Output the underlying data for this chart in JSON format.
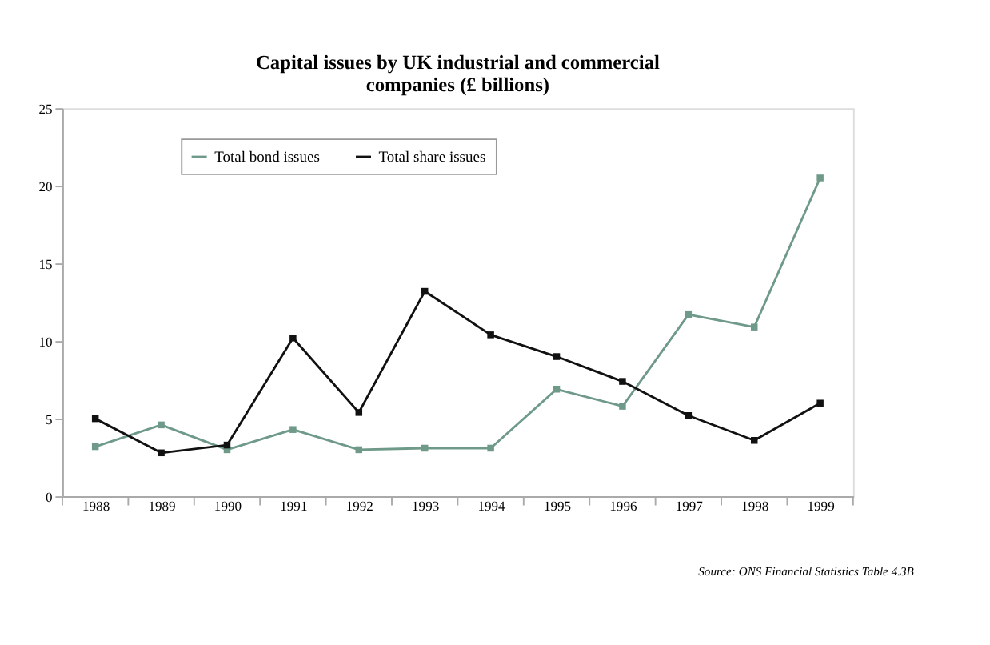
{
  "chart_data": {
    "type": "line",
    "title": [
      "Capital issues by UK industrial and commercial",
      "companies (£ billions)"
    ],
    "categories": [
      "1988",
      "1989",
      "1990",
      "1991",
      "1992",
      "1993",
      "1994",
      "1995",
      "1996",
      "1997",
      "1998",
      "1999"
    ],
    "series": [
      {
        "name": "Total bond issues",
        "color": "#6f9a8a",
        "values": [
          3.2,
          4.6,
          3.0,
          4.3,
          3.0,
          3.1,
          3.1,
          6.9,
          5.8,
          11.7,
          10.9,
          20.5
        ]
      },
      {
        "name": "Total share issues",
        "color": "#111111",
        "values": [
          5.0,
          2.8,
          3.3,
          10.2,
          5.4,
          13.2,
          10.4,
          9.0,
          7.4,
          5.2,
          3.6,
          6.0
        ]
      }
    ],
    "ylim": [
      0,
      25
    ],
    "yticks": [
      0,
      5,
      10,
      15,
      20,
      25
    ],
    "grid": false,
    "legend": "top",
    "marker": "square",
    "line_style": "solid",
    "annotations": [
      "Source: ONS Financial Statistics Table 4.3B"
    ]
  }
}
